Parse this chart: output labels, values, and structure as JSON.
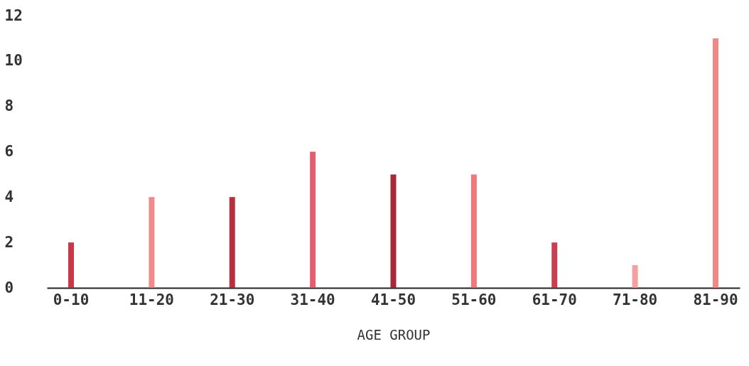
{
  "chart_data": {
    "type": "bar",
    "xlabel": "AGE GROUP",
    "categories": [
      "0-10",
      "11-20",
      "21-30",
      "31-40",
      "41-50",
      "51-60",
      "61-70",
      "71-80",
      "81-90"
    ],
    "values": [
      2,
      4,
      4,
      6,
      5,
      5,
      2,
      1,
      11
    ],
    "colors": [
      "#c83848",
      "#f08a8a",
      "#b83040",
      "#e06070",
      "#a82838",
      "#f07878",
      "#c84050",
      "#f4a0a0",
      "#f08888"
    ],
    "ylim": [
      0,
      12
    ],
    "yticks": [
      0,
      2,
      4,
      6,
      8,
      10,
      12
    ],
    "grid": false
  }
}
